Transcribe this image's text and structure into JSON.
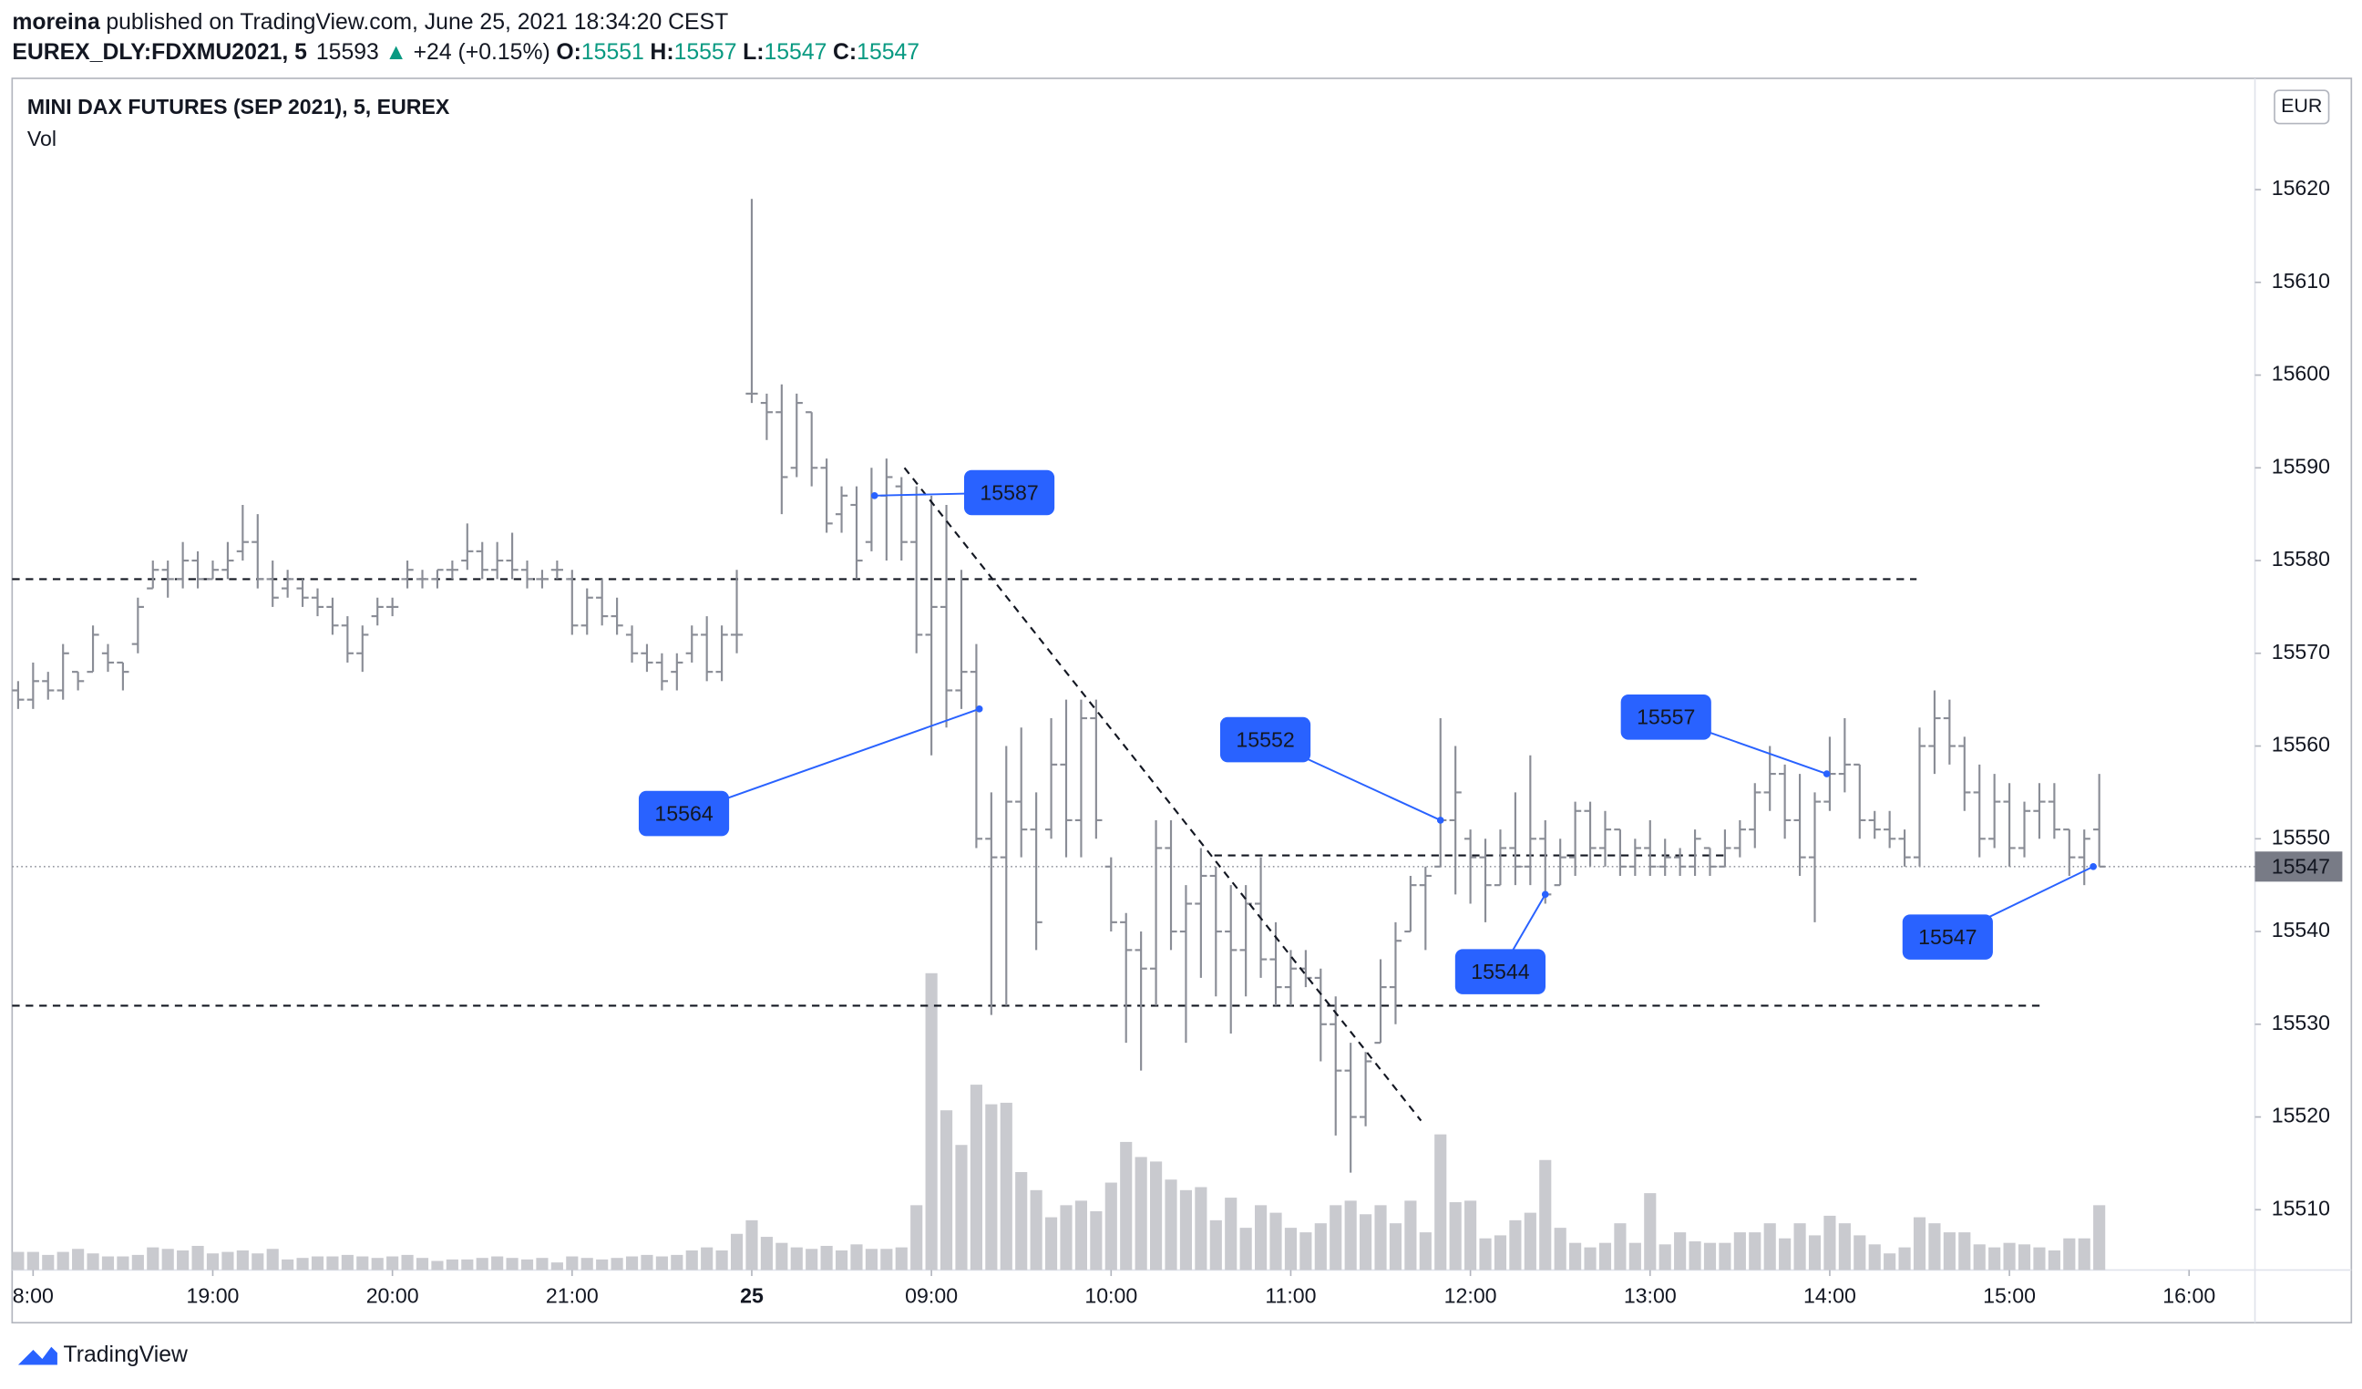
{
  "chart_data": {
    "type": "ohlc",
    "header": {
      "author": "moreina",
      "published": "published on TradingView.com, June 25, 2021 18:34:20 CEST",
      "symbol": "EUREX_DLY:FDXMU2021, 5",
      "price": 15593,
      "arrow": "▲",
      "change": "+24 (+0.15%)",
      "ohlc": [
        {
          "label": "O:",
          "value": 15551
        },
        {
          "label": "H:",
          "value": 15557
        },
        {
          "label": "L:",
          "value": 15547
        },
        {
          "label": "C:",
          "value": 15547
        }
      ]
    },
    "title": "MINI DAX FUTURES (SEP 2021), 5, EUREX",
    "volume_label": "Vol",
    "currency": "EUR",
    "brand": "TradingView",
    "bar_color": "#8a8d96",
    "volume_color": "#c9cacf",
    "annotation_color": "#2962ff",
    "up_color": "#089981",
    "grid": false,
    "xlim": [
      -1.4,
      148.4
    ],
    "xticks": [
      {
        "value": 0,
        "label": "8:00"
      },
      {
        "value": 12,
        "label": "19:00"
      },
      {
        "value": 24,
        "label": "20:00"
      },
      {
        "value": 36,
        "label": "21:00"
      },
      {
        "value": 48,
        "label": "25"
      },
      {
        "value": 60,
        "label": "09:00"
      },
      {
        "value": 72,
        "label": "10:00"
      },
      {
        "value": 84,
        "label": "11:00"
      },
      {
        "value": 96,
        "label": "12:00"
      },
      {
        "value": 108,
        "label": "13:00"
      },
      {
        "value": 120,
        "label": "14:00"
      },
      {
        "value": 132,
        "label": "15:00"
      },
      {
        "value": 144,
        "label": "16:00"
      }
    ],
    "ylim": [
      15503.5,
      15632
    ],
    "yticks": [
      15510,
      15520,
      15530,
      15540,
      15550,
      15560,
      15570,
      15580,
      15590,
      15600,
      15610,
      15620
    ],
    "vlim": [
      0,
      250
    ],
    "last": 15547,
    "x": [
      -1,
      0,
      1,
      2,
      3,
      4,
      5,
      6,
      7,
      8,
      9,
      10,
      11,
      12,
      13,
      14,
      15,
      16,
      17,
      18,
      19,
      20,
      21,
      22,
      23,
      24,
      25,
      26,
      27,
      28,
      29,
      30,
      31,
      32,
      33,
      34,
      35,
      36,
      37,
      38,
      39,
      40,
      41,
      42,
      43,
      44,
      45,
      46,
      47,
      48,
      49,
      50,
      51,
      52,
      53,
      54,
      55,
      56,
      57,
      58,
      59,
      60,
      61,
      62,
      63,
      64,
      65,
      66,
      67,
      68,
      69,
      70,
      71,
      72,
      73,
      74,
      75,
      76,
      77,
      78,
      79,
      80,
      81,
      82,
      83,
      84,
      85,
      86,
      87,
      88,
      89,
      90,
      91,
      92,
      93,
      94,
      95,
      96,
      97,
      98,
      99,
      100,
      101,
      102,
      103,
      104,
      105,
      106,
      107,
      108,
      109,
      110,
      111,
      112,
      113,
      114,
      115,
      116,
      117,
      118,
      119,
      120,
      121,
      122,
      123,
      124,
      125,
      126,
      127,
      128,
      129,
      130,
      131,
      132,
      133,
      134,
      135,
      136,
      137,
      138
    ],
    "bars": [
      [
        15566,
        15567,
        15564,
        15565
      ],
      [
        15565,
        15569,
        15564,
        15567
      ],
      [
        15567,
        15568,
        15565,
        15566
      ],
      [
        15566,
        15571,
        15565,
        15570
      ],
      [
        15568,
        15568,
        15566,
        15567
      ],
      [
        15568,
        15573,
        15568,
        15572
      ],
      [
        15570,
        15571,
        15568,
        15569
      ],
      [
        15569,
        15569,
        15566,
        15568
      ],
      [
        15571,
        15576,
        15570,
        15575
      ],
      [
        15577,
        15580,
        15577,
        15579
      ],
      [
        15579,
        15580,
        15576,
        15578
      ],
      [
        15578,
        15582,
        15577,
        15580
      ],
      [
        15580,
        15581,
        15577,
        15578
      ],
      [
        15578,
        15580,
        15578,
        15579
      ],
      [
        15579,
        15582,
        15578,
        15580
      ],
      [
        15581,
        15586,
        15580,
        15582
      ],
      [
        15582,
        15585,
        15577,
        15578
      ],
      [
        15578,
        15580,
        15575,
        15576
      ],
      [
        15577,
        15579,
        15576,
        15578
      ],
      [
        15577,
        15578,
        15575,
        15576
      ],
      [
        15576,
        15577,
        15574,
        15575
      ],
      [
        15575,
        15576,
        15572,
        15573
      ],
      [
        15573,
        15574,
        15569,
        15570
      ],
      [
        15570,
        15573,
        15568,
        15572
      ],
      [
        15574,
        15576,
        15573,
        15575
      ],
      [
        15575,
        15576,
        15574,
        15575
      ],
      [
        15578,
        15580,
        15577,
        15579
      ],
      [
        15578,
        15579,
        15577,
        15578
      ],
      [
        15578,
        15579,
        15577,
        15579
      ],
      [
        15579,
        15580,
        15578,
        15579
      ],
      [
        15580,
        15584,
        15579,
        15581
      ],
      [
        15581,
        15582,
        15578,
        15579
      ],
      [
        15579,
        15582,
        15578,
        15580
      ],
      [
        15580,
        15583,
        15578,
        15579
      ],
      [
        15579,
        15580,
        15577,
        15578
      ],
      [
        15578,
        15579,
        15577,
        15578
      ],
      [
        15579,
        15580,
        15578,
        15579
      ],
      [
        15578,
        15579,
        15572,
        15573
      ],
      [
        15573,
        15577,
        15572,
        15576
      ],
      [
        15576,
        15578,
        15573,
        15574
      ],
      [
        15574,
        15576,
        15572,
        15573
      ],
      [
        15572,
        15573,
        15569,
        15570
      ],
      [
        15570,
        15571,
        15568,
        15569
      ],
      [
        15569,
        15570,
        15566,
        15567
      ],
      [
        15568,
        15570,
        15566,
        15569
      ],
      [
        15570,
        15573,
        15569,
        15572
      ],
      [
        15572,
        15574,
        15567,
        15568
      ],
      [
        15568,
        15573,
        15567,
        15572
      ],
      [
        15572,
        15579,
        15570,
        15572
      ],
      [
        15598,
        15619,
        15597,
        15598
      ],
      [
        15597,
        15598,
        15593,
        15596
      ],
      [
        15596,
        15599,
        15585,
        15589
      ],
      [
        15590,
        15598,
        15589,
        15597
      ],
      [
        15596,
        15596,
        15588,
        15590
      ],
      [
        15590,
        15591,
        15583,
        15584
      ],
      [
        15585,
        15588,
        15583,
        15587
      ],
      [
        15586,
        15588,
        15578,
        15580
      ],
      [
        15582,
        15590,
        15581,
        15587
      ],
      [
        15587,
        15591,
        15580,
        15589
      ],
      [
        15588,
        15589,
        15580,
        15582
      ],
      [
        15582,
        15588,
        15570,
        15572
      ],
      [
        15572,
        15587,
        15559,
        15575
      ],
      [
        15575,
        15586,
        15562,
        15566
      ],
      [
        15566,
        15579,
        15564,
        15568
      ],
      [
        15568,
        15571,
        15549,
        15550
      ],
      [
        15550,
        15555,
        15531,
        15548
      ],
      [
        15548,
        15560,
        15532,
        15554
      ],
      [
        15554,
        15562,
        15548,
        15551
      ],
      [
        15551,
        15555,
        15538,
        15541
      ],
      [
        15551,
        15563,
        15550,
        15558
      ],
      [
        15558,
        15565,
        15548,
        15552
      ],
      [
        15552,
        15565,
        15548,
        15563
      ],
      [
        15563,
        15565,
        15550,
        15552
      ],
      [
        15547,
        15548,
        15540,
        15541
      ],
      [
        15541,
        15542,
        15528,
        15538
      ],
      [
        15538,
        15540,
        15525,
        15536
      ],
      [
        15536,
        15552,
        15532,
        15549
      ],
      [
        15549,
        15552,
        15538,
        15540
      ],
      [
        15540,
        15545,
        15528,
        15543
      ],
      [
        15543,
        15549,
        15535,
        15546
      ],
      [
        15546,
        15547,
        15533,
        15540
      ],
      [
        15540,
        15545,
        15529,
        15538
      ],
      [
        15538,
        15545,
        15533,
        15543
      ],
      [
        15543,
        15548,
        15535,
        15537
      ],
      [
        15537,
        15541,
        15532,
        15534
      ],
      [
        15534,
        15538,
        15532,
        15536
      ],
      [
        15536,
        15538,
        15534,
        15535
      ],
      [
        15535,
        15536,
        15526,
        15530
      ],
      [
        15530,
        15533,
        15518,
        15525
      ],
      [
        15525,
        15528,
        15514,
        15520
      ],
      [
        15520,
        15527,
        15519,
        15526
      ],
      [
        15528,
        15537,
        15528,
        15534
      ],
      [
        15534,
        15541,
        15530,
        15539
      ],
      [
        15540,
        15546,
        15540,
        15545
      ],
      [
        15545,
        15547,
        15538,
        15546
      ],
      [
        15547,
        15563,
        15547,
        15552
      ],
      [
        15552,
        15560,
        15544,
        15555
      ],
      [
        15550,
        15551,
        15543,
        15548
      ],
      [
        15548,
        15550,
        15541,
        15545
      ],
      [
        15545,
        15551,
        15545,
        15549
      ],
      [
        15549,
        15555,
        15545,
        15547
      ],
      [
        15547,
        15559,
        15545,
        15550
      ],
      [
        15550,
        15552,
        15543,
        15544
      ],
      [
        15545,
        15550,
        15545,
        15548
      ],
      [
        15548,
        15554,
        15546,
        15553
      ],
      [
        15553,
        15554,
        15547,
        15549
      ],
      [
        15549,
        15553,
        15547,
        15551
      ],
      [
        15551,
        15551,
        15546,
        15547
      ],
      [
        15547,
        15550,
        15546,
        15549
      ],
      [
        15549,
        15552,
        15546,
        15547
      ],
      [
        15547,
        15550,
        15546,
        15548
      ],
      [
        15548,
        15549,
        15546,
        15547
      ],
      [
        15547,
        15551,
        15546,
        15550
      ],
      [
        15549,
        15549,
        15546,
        15547
      ],
      [
        15547,
        15551,
        15547,
        15549
      ],
      [
        15549,
        15552,
        15548,
        15551
      ],
      [
        15551,
        15556,
        15549,
        15555
      ],
      [
        15555,
        15560,
        15553,
        15557
      ],
      [
        15557,
        15558,
        15550,
        15552
      ],
      [
        15552,
        15557,
        15546,
        15548
      ],
      [
        15548,
        15555,
        15541,
        15554
      ],
      [
        15554,
        15561,
        15553,
        15557
      ],
      [
        15557,
        15563,
        15555,
        15558
      ],
      [
        15558,
        15558,
        15550,
        15552
      ],
      [
        15552,
        15553,
        15550,
        15551
      ],
      [
        15551,
        15553,
        15549,
        15550
      ],
      [
        15550,
        15551,
        15547,
        15548
      ],
      [
        15548,
        15562,
        15547,
        15560
      ],
      [
        15560,
        15566,
        15557,
        15563
      ],
      [
        15563,
        15565,
        15558,
        15560
      ],
      [
        15560,
        15561,
        15553,
        15555
      ],
      [
        15555,
        15558,
        15548,
        15550
      ],
      [
        15550,
        15557,
        15549,
        15554
      ],
      [
        15554,
        15556,
        15547,
        15549
      ],
      [
        15549,
        15554,
        15548,
        15553
      ],
      [
        15553,
        15556,
        15550,
        15554
      ],
      [
        15554,
        15556,
        15550,
        15551
      ],
      [
        15551,
        15551,
        15546,
        15548
      ],
      [
        15548,
        15551,
        15545,
        15550
      ],
      [
        15551,
        15557,
        15547,
        15547
      ]
    ],
    "volume": [
      12,
      12,
      10,
      12,
      14,
      11,
      9,
      9,
      10,
      15,
      14,
      13,
      16,
      11,
      12,
      13,
      11,
      14,
      7,
      8,
      9,
      9,
      10,
      9,
      8,
      9,
      10,
      8,
      6,
      7,
      7,
      8,
      9,
      8,
      7,
      8,
      5,
      9,
      8,
      7,
      8,
      9,
      10,
      9,
      10,
      13,
      15,
      13,
      24,
      33,
      22,
      18,
      15,
      14,
      16,
      13,
      17,
      14,
      14,
      15,
      43,
      197,
      106,
      83,
      123,
      110,
      111,
      65,
      53,
      35,
      43,
      46,
      39,
      58,
      85,
      75,
      72,
      60,
      53,
      55,
      33,
      48,
      28,
      43,
      38,
      28,
      25,
      31,
      43,
      46,
      37,
      43,
      31,
      46,
      25,
      90,
      45,
      46,
      21,
      23,
      33,
      38,
      73,
      28,
      18,
      15,
      18,
      31,
      18,
      51,
      17,
      25,
      19,
      18,
      18,
      25,
      25,
      31,
      21,
      31,
      23,
      36,
      31,
      23,
      17,
      11,
      15,
      35,
      31,
      25,
      25,
      17,
      15,
      18,
      17,
      15,
      13,
      21,
      21,
      43
    ],
    "levels": [
      {
        "value": 15578,
        "x": [
          -1.4,
          125.8
        ]
      },
      {
        "value": 15532,
        "x": [
          -1.4,
          134.4
        ]
      },
      {
        "value": 15548.2,
        "x": [
          78.9,
          113.3
        ]
      }
    ],
    "trend_line": {
      "x": [
        58.2,
        92.7
      ],
      "values": [
        15590,
        15519.6
      ]
    },
    "annotations": [
      {
        "x": 56.2,
        "value": 15587
      },
      {
        "x": 63.2,
        "value": 15564
      },
      {
        "x": 94,
        "value": 15552
      },
      {
        "x": 119.8,
        "value": 15557
      },
      {
        "x": 101,
        "value": 15544
      },
      {
        "x": 137.6,
        "value": 15547
      }
    ]
  }
}
